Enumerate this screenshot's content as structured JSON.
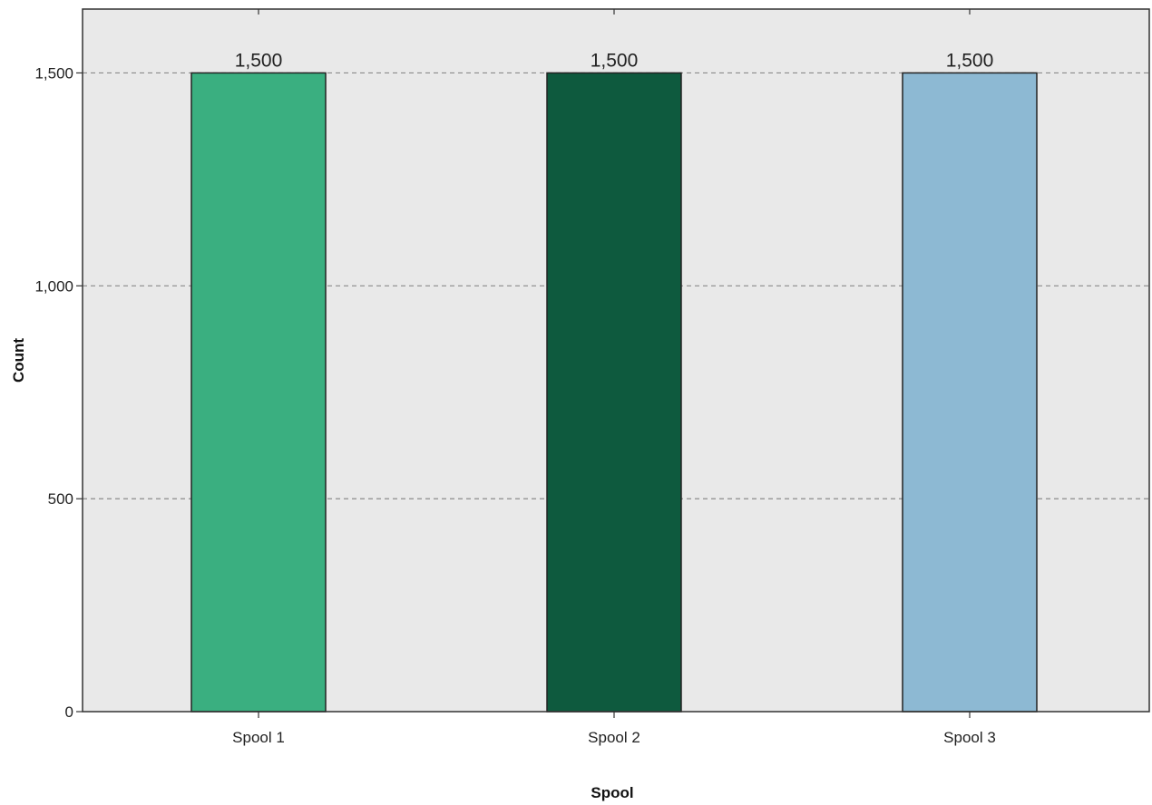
{
  "chart_data": {
    "type": "bar",
    "categories": [
      "Spool 1",
      "Spool 2",
      "Spool 3"
    ],
    "values": [
      1500,
      1500,
      1500
    ],
    "data_labels": [
      "1,500",
      "1,500",
      "1,500"
    ],
    "bar_colors": [
      "#3aaf80",
      "#0e5a3e",
      "#8db9d3"
    ],
    "xlabel": "Spool",
    "ylabel": "Count",
    "ylim": [
      0,
      1500
    ],
    "yticks": [
      0,
      500,
      1000,
      1500
    ],
    "ytick_labels": [
      "0",
      "500",
      "1,000",
      "1,500"
    ],
    "grid": "horizontal dashed",
    "background_color": "#e9e9e9"
  }
}
